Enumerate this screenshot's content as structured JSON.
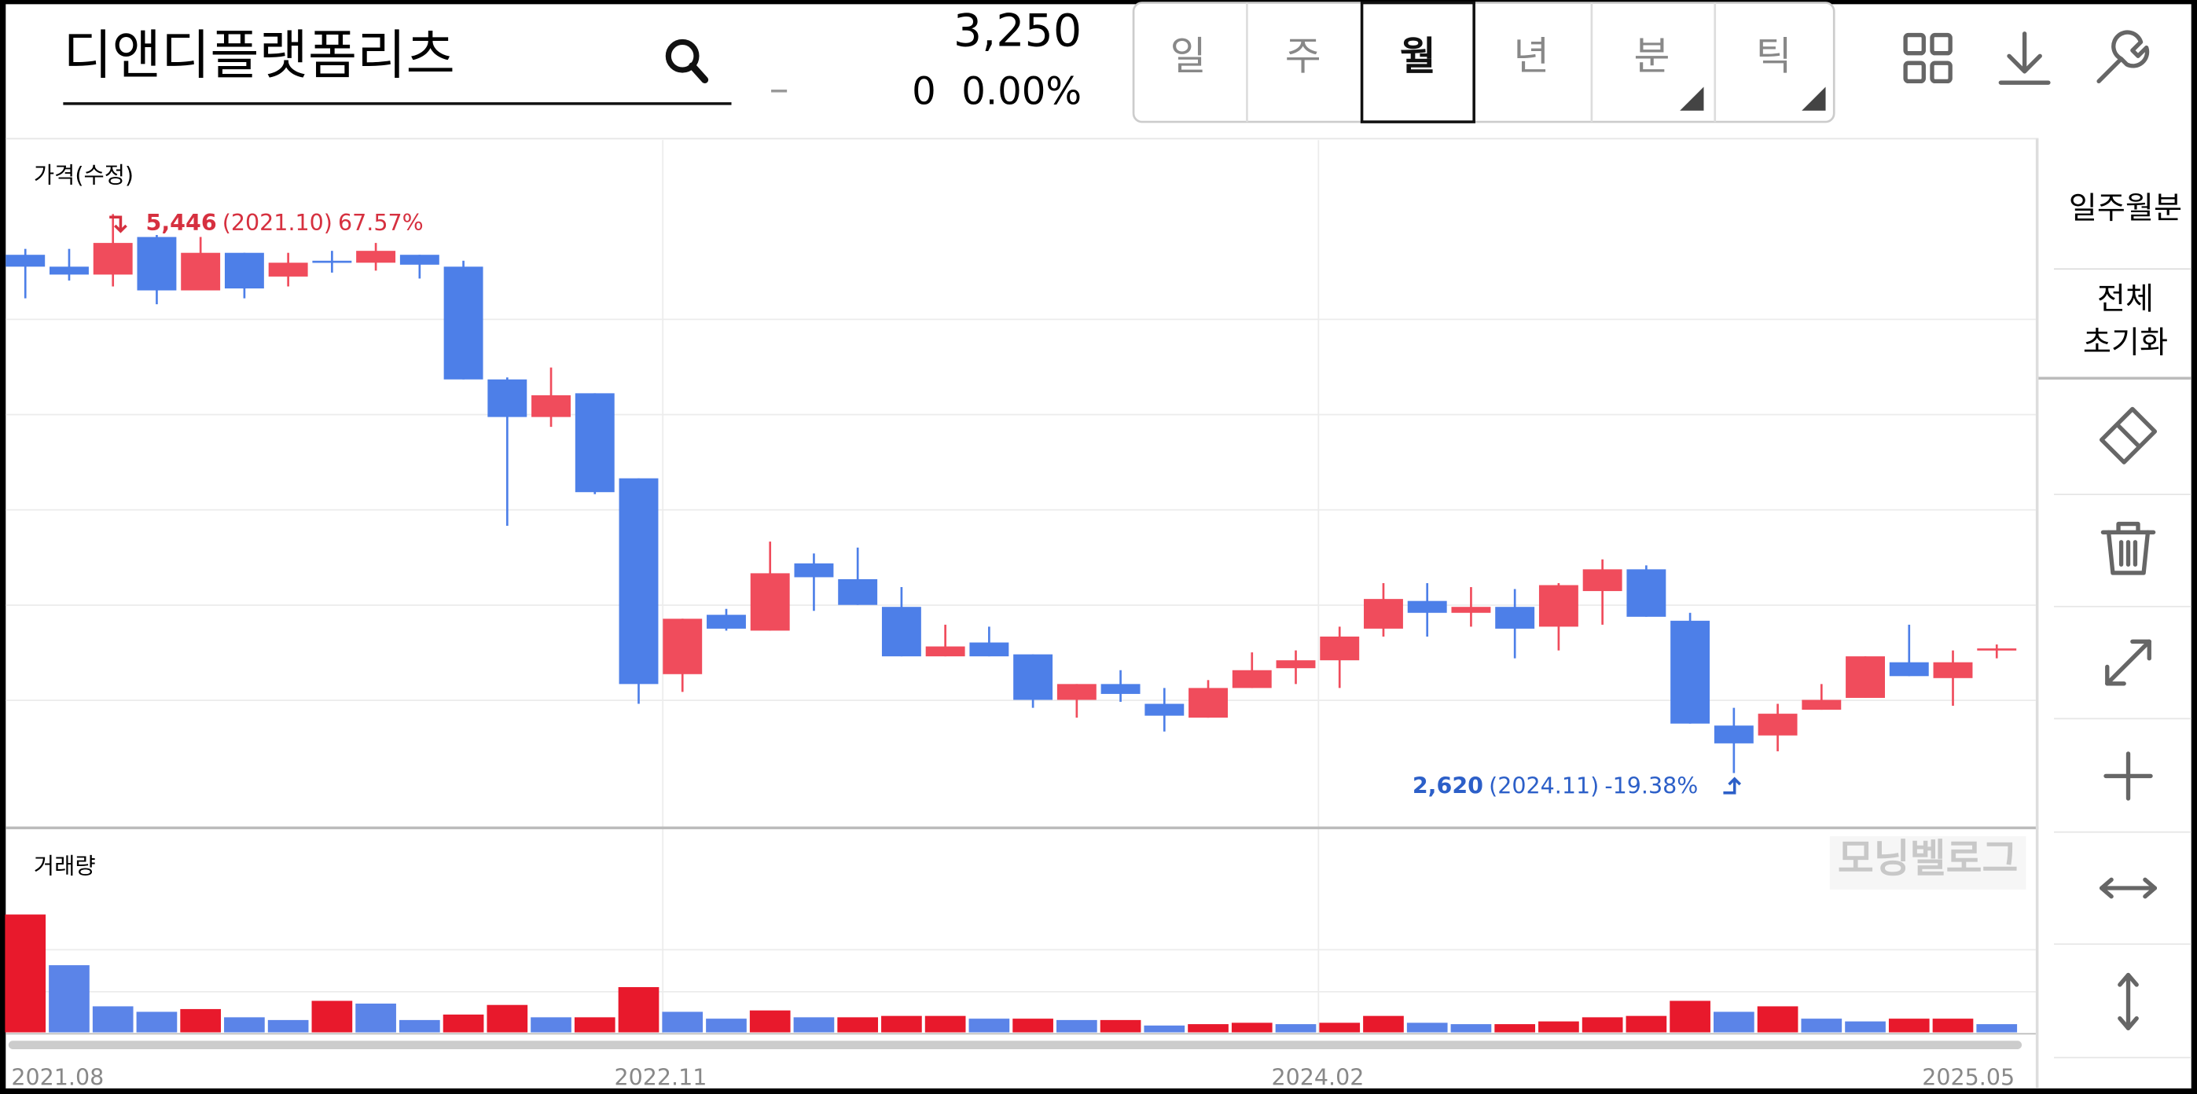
{
  "header": {
    "title": "디앤디플랫폼리츠",
    "price": "3,250",
    "change_sign": "–",
    "change": "0",
    "change_pct": "0.00%",
    "tabs": [
      "일",
      "주",
      "월",
      "년",
      "분",
      "틱"
    ]
  },
  "side_panel": {
    "period": "일주월분",
    "reset": [
      "전체",
      "초기화"
    ]
  },
  "watermark": "모닝벨로그",
  "chart_data": [
    {
      "type": "candlestick",
      "title": "가격(수정)",
      "categories": [
        "2021.08",
        null,
        null,
        null,
        null,
        null,
        null,
        null,
        null,
        null,
        null,
        null,
        null,
        null,
        null,
        "2022.11",
        null,
        null,
        null,
        null,
        null,
        null,
        null,
        null,
        null,
        null,
        null,
        null,
        null,
        null,
        "2024.02",
        null,
        null,
        null,
        null,
        null,
        null,
        null,
        null,
        null,
        null,
        null,
        null,
        null,
        null,
        "2025.05"
      ],
      "open": [
        5240,
        5180,
        5140,
        5330,
        5060,
        5250,
        5130,
        5210,
        5200,
        5240,
        5180,
        4610,
        4420,
        4540,
        4110,
        3120,
        3420,
        3340,
        3680,
        3600,
        3460,
        3210,
        3280,
        3220,
        2990,
        3070,
        2970,
        2900,
        3050,
        3150,
        3190,
        3350,
        3490,
        3430,
        3460,
        3360,
        3540,
        3650,
        3390,
        2860,
        2810,
        2940,
        3000,
        3180,
        3100,
        3240
      ],
      "high": [
        5270,
        5270,
        5446,
        5340,
        5330,
        5250,
        5250,
        5260,
        5300,
        5240,
        5210,
        4620,
        4670,
        4540,
        4110,
        3400,
        3450,
        3790,
        3730,
        3760,
        3560,
        3370,
        3360,
        3220,
        3070,
        3140,
        3050,
        3090,
        3230,
        3240,
        3360,
        3580,
        3580,
        3560,
        3550,
        3580,
        3700,
        3670,
        3430,
        2950,
        2970,
        3070,
        3210,
        3370,
        3240,
        3270
      ],
      "low": [
        5020,
        5110,
        5080,
        4990,
        5060,
        5020,
        5080,
        5150,
        5160,
        5120,
        4610,
        3870,
        4370,
        4030,
        2970,
        3030,
        3340,
        3340,
        3440,
        3470,
        3210,
        3210,
        3210,
        2950,
        2900,
        2980,
        2830,
        2900,
        3050,
        3070,
        3050,
        3310,
        3310,
        3360,
        3200,
        3240,
        3370,
        3410,
        2870,
        2620,
        2730,
        2940,
        3000,
        3110,
        2960,
        3200
      ],
      "close": [
        5180,
        5140,
        5300,
        5060,
        5250,
        5070,
        5200,
        5200,
        5260,
        5190,
        4610,
        4420,
        4530,
        4040,
        3070,
        3400,
        3350,
        3630,
        3610,
        3470,
        3210,
        3260,
        3210,
        2990,
        3070,
        3020,
        2910,
        3050,
        3140,
        3190,
        3310,
        3500,
        3430,
        3460,
        3350,
        3570,
        3650,
        3410,
        2870,
        2770,
        2920,
        2990,
        3210,
        3110,
        3180,
        3250
      ],
      "up_color": "#f04c5c",
      "down_color": "#4d7fe8",
      "ylim": [
        2350,
        5820
      ],
      "annotations": [
        {
          "label": "5,446",
          "value": 5446,
          "date": "(2021.10)",
          "change": "67.57%",
          "color": "#d6303f"
        },
        {
          "label": "2,620",
          "value": 2620,
          "date": "(2024.11)",
          "change": "-19.38%",
          "color": "#2c5fc8"
        }
      ]
    },
    {
      "type": "bar",
      "title": "거래량",
      "values": [
        86,
        49,
        19,
        15,
        17,
        11,
        9,
        23,
        21,
        9,
        13,
        20,
        11,
        11,
        33,
        15,
        10,
        16,
        11,
        11,
        12,
        12,
        10,
        10,
        9,
        9,
        5,
        6,
        7,
        6,
        7,
        12,
        7,
        6,
        6,
        8,
        11,
        12,
        23,
        15,
        19,
        10,
        8,
        10,
        10,
        6
      ],
      "up_color": "#e8192c",
      "down_color": "#5b84e8",
      "ylim": [
        0,
        140
      ]
    }
  ]
}
